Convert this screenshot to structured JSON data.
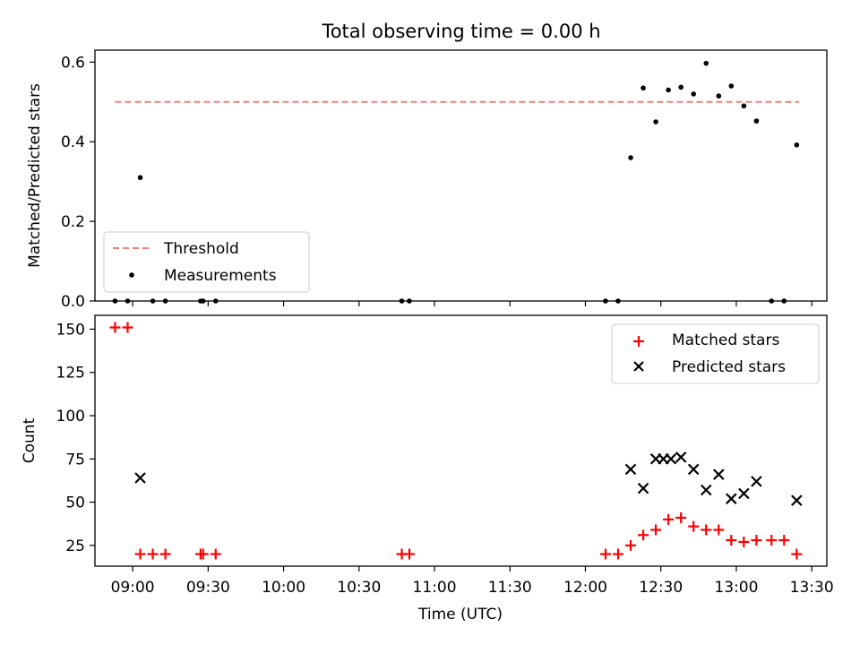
{
  "figure": {
    "title": "Total observing time = 0.00 h"
  },
  "chart_data": [
    {
      "type": "scatter",
      "xlabel": "",
      "ylabel": "Matched/Predicted stars",
      "xlim": [
        "08:45",
        "13:36"
      ],
      "ylim": [
        0,
        0.63
      ],
      "yticks": [
        0,
        0.2,
        0.4,
        0.6
      ],
      "ytick_labels": [
        "0.0",
        "0.2",
        "0.4",
        "0.6"
      ],
      "grid": false,
      "legend_position": "lower-left",
      "colors": {
        "threshold": "#f08080",
        "measurements": "#000000"
      },
      "threshold": {
        "name": "Threshold",
        "x_start": "08:53",
        "x_end": "13:25",
        "y": 0.5,
        "style": "dashed"
      },
      "series": [
        {
          "name": "Measurements",
          "x": [
            "08:53",
            "08:58",
            "09:03",
            "09:08",
            "09:13",
            "09:27",
            "09:28",
            "09:33",
            "10:47",
            "10:50",
            "12:08",
            "12:13",
            "12:18",
            "12:23",
            "12:28",
            "12:33",
            "12:38",
            "12:43",
            "12:48",
            "12:53",
            "12:58",
            "13:03",
            "13:08",
            "13:14",
            "13:19",
            "13:24"
          ],
          "y": [
            0,
            0,
            0.31,
            0,
            0,
            0,
            0,
            0,
            0,
            0,
            0,
            0,
            0.36,
            0.535,
            0.45,
            0.53,
            0.537,
            0.52,
            0.597,
            0.515,
            0.54,
            0.49,
            0.452,
            0,
            0,
            0.392
          ]
        }
      ]
    },
    {
      "type": "scatter",
      "xlabel": "Time (UTC)",
      "ylabel": "Count",
      "xlim": [
        "08:45",
        "13:36"
      ],
      "ylim": [
        13,
        158
      ],
      "xticks": [
        "09:00",
        "09:30",
        "10:00",
        "10:30",
        "11:00",
        "11:30",
        "12:00",
        "12:30",
        "13:00",
        "13:30"
      ],
      "yticks": [
        25,
        50,
        75,
        100,
        125,
        150
      ],
      "ytick_labels": [
        "25",
        "50",
        "75",
        "100",
        "125",
        "150"
      ],
      "grid": false,
      "legend_position": "top-right",
      "colors": {
        "matched": "#ff0000",
        "predicted": "#000000"
      },
      "series": [
        {
          "name": "Matched stars",
          "marker": "plus",
          "x": [
            "08:53",
            "08:58",
            "09:03",
            "09:08",
            "09:13",
            "09:27",
            "09:28",
            "09:33",
            "10:47",
            "10:50",
            "12:08",
            "12:13",
            "12:18",
            "12:23",
            "12:28",
            "12:33",
            "12:38",
            "12:43",
            "12:48",
            "12:53",
            "12:58",
            "13:03",
            "13:08",
            "13:14",
            "13:19",
            "13:24"
          ],
          "y": [
            151,
            151,
            20,
            20,
            20,
            20,
            20,
            20,
            20,
            20,
            20,
            20,
            25,
            31,
            34,
            40,
            41,
            36,
            34,
            34,
            28,
            27,
            28,
            28,
            28,
            20
          ]
        },
        {
          "name": "Predicted stars",
          "marker": "x",
          "x": [
            "09:03",
            "12:18",
            "12:23",
            "12:28",
            "12:31",
            "12:34",
            "12:38",
            "12:43",
            "12:48",
            "12:53",
            "12:58",
            "13:03",
            "13:08",
            "13:24"
          ],
          "y": [
            64,
            69,
            58,
            75,
            75,
            75,
            76,
            69,
            57,
            66,
            52,
            55,
            62,
            51
          ]
        }
      ]
    }
  ]
}
